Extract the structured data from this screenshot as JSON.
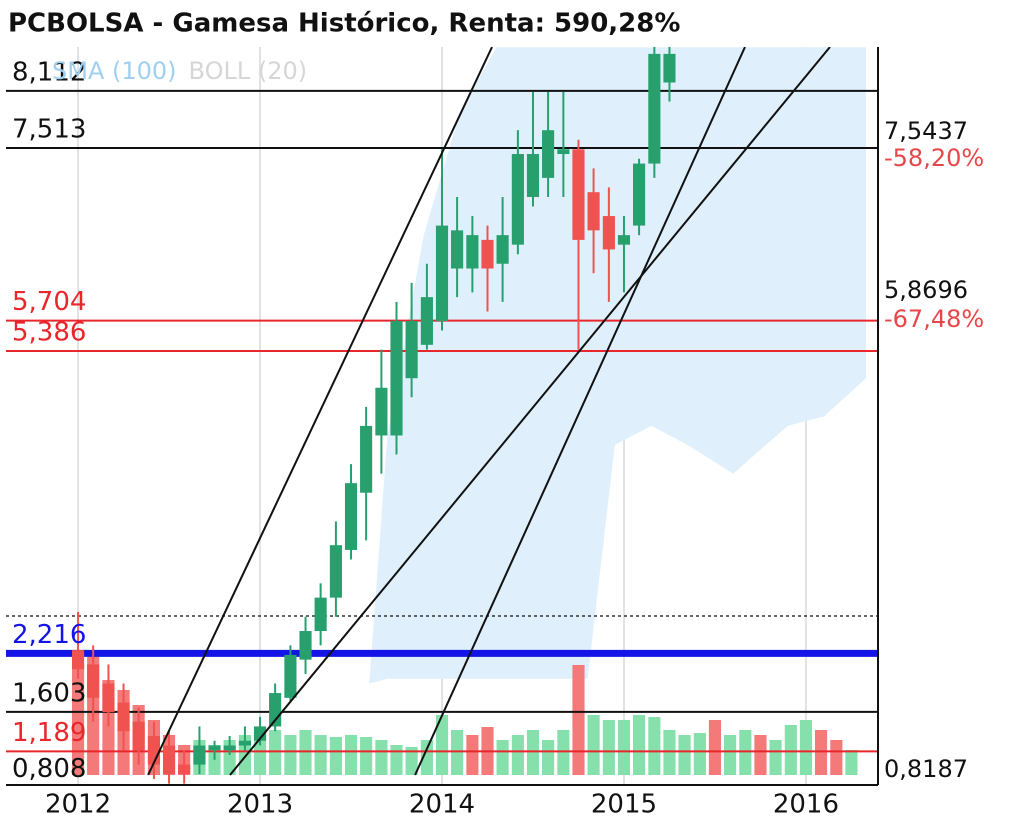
{
  "chart_data": {
    "type": "candlestick",
    "title": "PCBOLSA - Gamesa Histórico, Renta: 590,28%",
    "legend": [
      {
        "name": "SMA (100)",
        "color": "#9fd0f0"
      },
      {
        "name": "BOLL (20)",
        "color": "#d6d6d6"
      }
    ],
    "x": [
      2012,
      2012.083,
      2012.167,
      2012.25,
      2012.333,
      2012.417,
      2012.5,
      2012.583,
      2012.667,
      2012.75,
      2012.833,
      2012.917,
      2013,
      2013.083,
      2013.167,
      2013.25,
      2013.333,
      2013.417,
      2013.5,
      2013.583,
      2013.667,
      2013.75,
      2013.833,
      2013.917,
      2014,
      2014.083,
      2014.167,
      2014.25,
      2014.333,
      2014.417,
      2014.5,
      2014.583,
      2014.667,
      2014.75,
      2014.833,
      2014.917,
      2015,
      2015.083,
      2015.167,
      2015.25,
      2015.333,
      2015.417,
      2015.5,
      2015.583,
      2015.667,
      2015.75,
      2015.833,
      2015.917,
      2016,
      2016.083,
      2016.167,
      2016.25
    ],
    "open": [
      2.25,
      2.1,
      1.9,
      1.7,
      1.5,
      1.35,
      1.25,
      1.05,
      1.05,
      1.2,
      1.2,
      1.25,
      1.3,
      1.45,
      1.75,
      2.15,
      2.45,
      2.8,
      3.3,
      3.9,
      4.5,
      4.5,
      5.1,
      5.45,
      5.7,
      6.25,
      6.25,
      6.55,
      6.3,
      6.5,
      7.0,
      7.2,
      7.45,
      7.5,
      7.05,
      6.8,
      6.5,
      6.7,
      7.35,
      8.2,
      null,
      null,
      null,
      null,
      null,
      null,
      null,
      null,
      null,
      null,
      null,
      null
    ],
    "high": [
      2.65,
      2.3,
      2.1,
      1.9,
      1.65,
      1.5,
      1.4,
      1.2,
      1.45,
      1.3,
      1.35,
      1.45,
      1.55,
      1.9,
      2.3,
      2.6,
      2.95,
      3.6,
      4.2,
      4.8,
      5.4,
      5.9,
      6.1,
      6.3,
      7.5,
      7.0,
      6.8,
      6.7,
      7.0,
      7.7,
      8.1,
      8.1,
      8.1,
      7.6,
      7.3,
      7.1,
      6.8,
      7.4,
      8.6,
      8.6,
      null,
      null,
      null,
      null,
      null,
      null,
      null,
      null,
      null,
      null,
      null,
      null
    ],
    "low": [
      1.95,
      1.5,
      1.45,
      1.2,
      1.05,
      0.9,
      0.85,
      0.85,
      0.95,
      1.1,
      1.15,
      1.2,
      1.25,
      1.4,
      1.7,
      2.0,
      2.3,
      2.6,
      3.2,
      3.4,
      4.1,
      4.3,
      4.9,
      5.4,
      5.6,
      5.95,
      6.0,
      5.8,
      5.9,
      6.4,
      6.9,
      7.0,
      7.0,
      5.4,
      6.2,
      5.9,
      6.0,
      6.6,
      7.2,
      8.0,
      null,
      null,
      null,
      null,
      null,
      null,
      null,
      null,
      null,
      null,
      null,
      null
    ],
    "close": [
      2.05,
      1.75,
      1.6,
      1.4,
      1.2,
      1.05,
      0.95,
      0.95,
      1.25,
      1.25,
      1.25,
      1.3,
      1.45,
      1.8,
      2.2,
      2.45,
      2.8,
      3.35,
      4.0,
      4.6,
      5.0,
      5.7,
      5.7,
      5.95,
      6.7,
      6.65,
      6.6,
      6.25,
      6.6,
      7.45,
      7.45,
      7.7,
      7.5,
      6.55,
      6.65,
      6.45,
      6.6,
      7.35,
      8.5,
      8.5,
      null,
      null,
      null,
      null,
      null,
      null,
      null,
      null,
      null,
      null,
      null,
      null
    ],
    "up_color": "#27a06e",
    "down_color": "#f0524f",
    "volume": {
      "values": [
        110,
        120,
        95,
        85,
        70,
        55,
        40,
        30,
        35,
        30,
        35,
        40,
        45,
        45,
        40,
        45,
        40,
        38,
        40,
        38,
        35,
        30,
        28,
        35,
        60,
        45,
        40,
        48,
        35,
        40,
        45,
        35,
        45,
        110,
        60,
        55,
        55,
        60,
        58,
        45,
        40,
        42,
        55,
        40,
        45,
        40,
        35,
        50,
        55,
        45,
        35,
        25
      ],
      "colors": [
        "#f47a7a",
        "#f47a7a",
        "#f47a7a",
        "#f47a7a",
        "#f47a7a",
        "#f47a7a",
        "#f47a7a",
        "#f47a7a",
        "#86e0ac",
        "#86e0ac",
        "#86e0ac",
        "#86e0ac",
        "#86e0ac",
        "#86e0ac",
        "#86e0ac",
        "#86e0ac",
        "#86e0ac",
        "#86e0ac",
        "#86e0ac",
        "#86e0ac",
        "#86e0ac",
        "#86e0ac",
        "#86e0ac",
        "#86e0ac",
        "#86e0ac",
        "#86e0ac",
        "#f47a7a",
        "#f47a7a",
        "#86e0ac",
        "#86e0ac",
        "#86e0ac",
        "#86e0ac",
        "#86e0ac",
        "#f47a7a",
        "#86e0ac",
        "#86e0ac",
        "#86e0ac",
        "#86e0ac",
        "#86e0ac",
        "#86e0ac",
        "#86e0ac",
        "#86e0ac",
        "#f47a7a",
        "#86e0ac",
        "#86e0ac",
        "#f47a7a",
        "#86e0ac",
        "#86e0ac",
        "#86e0ac",
        "#f47a7a",
        "#f47a7a",
        "#86e0ac"
      ]
    },
    "band": {
      "color": "#dff0fc",
      "x": [
        2013.6,
        2013.7,
        2013.9,
        2014.1,
        2014.3,
        2014.8,
        2014.95,
        2015.15,
        2015.35,
        2015.6,
        2015.9,
        2016.1,
        2016.33
      ],
      "upper": [
        1.9,
        4.5,
        6.6,
        7.9,
        8.57,
        8.57,
        8.57,
        8.57,
        8.57,
        8.57,
        8.57,
        8.57,
        8.57
      ],
      "lower": [
        1.9,
        1.95,
        1.95,
        1.95,
        1.95,
        1.95,
        4.4,
        4.6,
        4.4,
        4.1,
        4.6,
        4.7,
        5.1
      ]
    },
    "levels": [
      {
        "value": 8.112,
        "label": "8,112",
        "color": "#111111",
        "line_width": 2
      },
      {
        "value": 7.513,
        "label": "7,513",
        "color": "#111111",
        "line_width": 2
      },
      {
        "value": 5.704,
        "label": "5,704",
        "color": "#e8262b",
        "line_width": 2
      },
      {
        "value": 5.386,
        "label": "5,386",
        "color": "#e8262b",
        "line_width": 2
      },
      {
        "value": 2.216,
        "label": "2,216",
        "color": "#1414e6",
        "line_width": 7
      },
      {
        "value": 1.603,
        "label": "1,603",
        "color": "#111111",
        "line_width": 2
      },
      {
        "value": 1.189,
        "label": "1,189",
        "color": "#e8262b",
        "line_width": 2
      },
      {
        "value": 0.808,
        "label": "0,808",
        "color": "#111111",
        "line_width": 2
      }
    ],
    "dotted_level": 2.607,
    "trendlines": [
      {
        "x": [
          2012.385,
          2014.275
        ],
        "y": [
          0.941,
          8.572
        ]
      },
      {
        "x": [
          2012.835,
          2016.132
        ],
        "y": [
          0.941,
          8.572
        ]
      },
      {
        "x": [
          2013.852,
          2015.665
        ],
        "y": [
          0.941,
          8.572
        ]
      }
    ],
    "right_labels": [
      {
        "text": "7,5437",
        "color": "#111111"
      },
      {
        "text": "-58,20%",
        "color": "#e8474a"
      },
      {
        "text": "5,8696",
        "color": "#111111"
      },
      {
        "text": "-67,48%",
        "color": "#e8474a"
      },
      {
        "text": "0,8187",
        "color": "#111111"
      }
    ],
    "xlim": [
      2011.604,
      2016.396
    ],
    "xticks": [
      2012,
      2013,
      2014,
      2015,
      2016
    ],
    "ylim": [
      0.836,
      8.572
    ],
    "grid": true
  }
}
